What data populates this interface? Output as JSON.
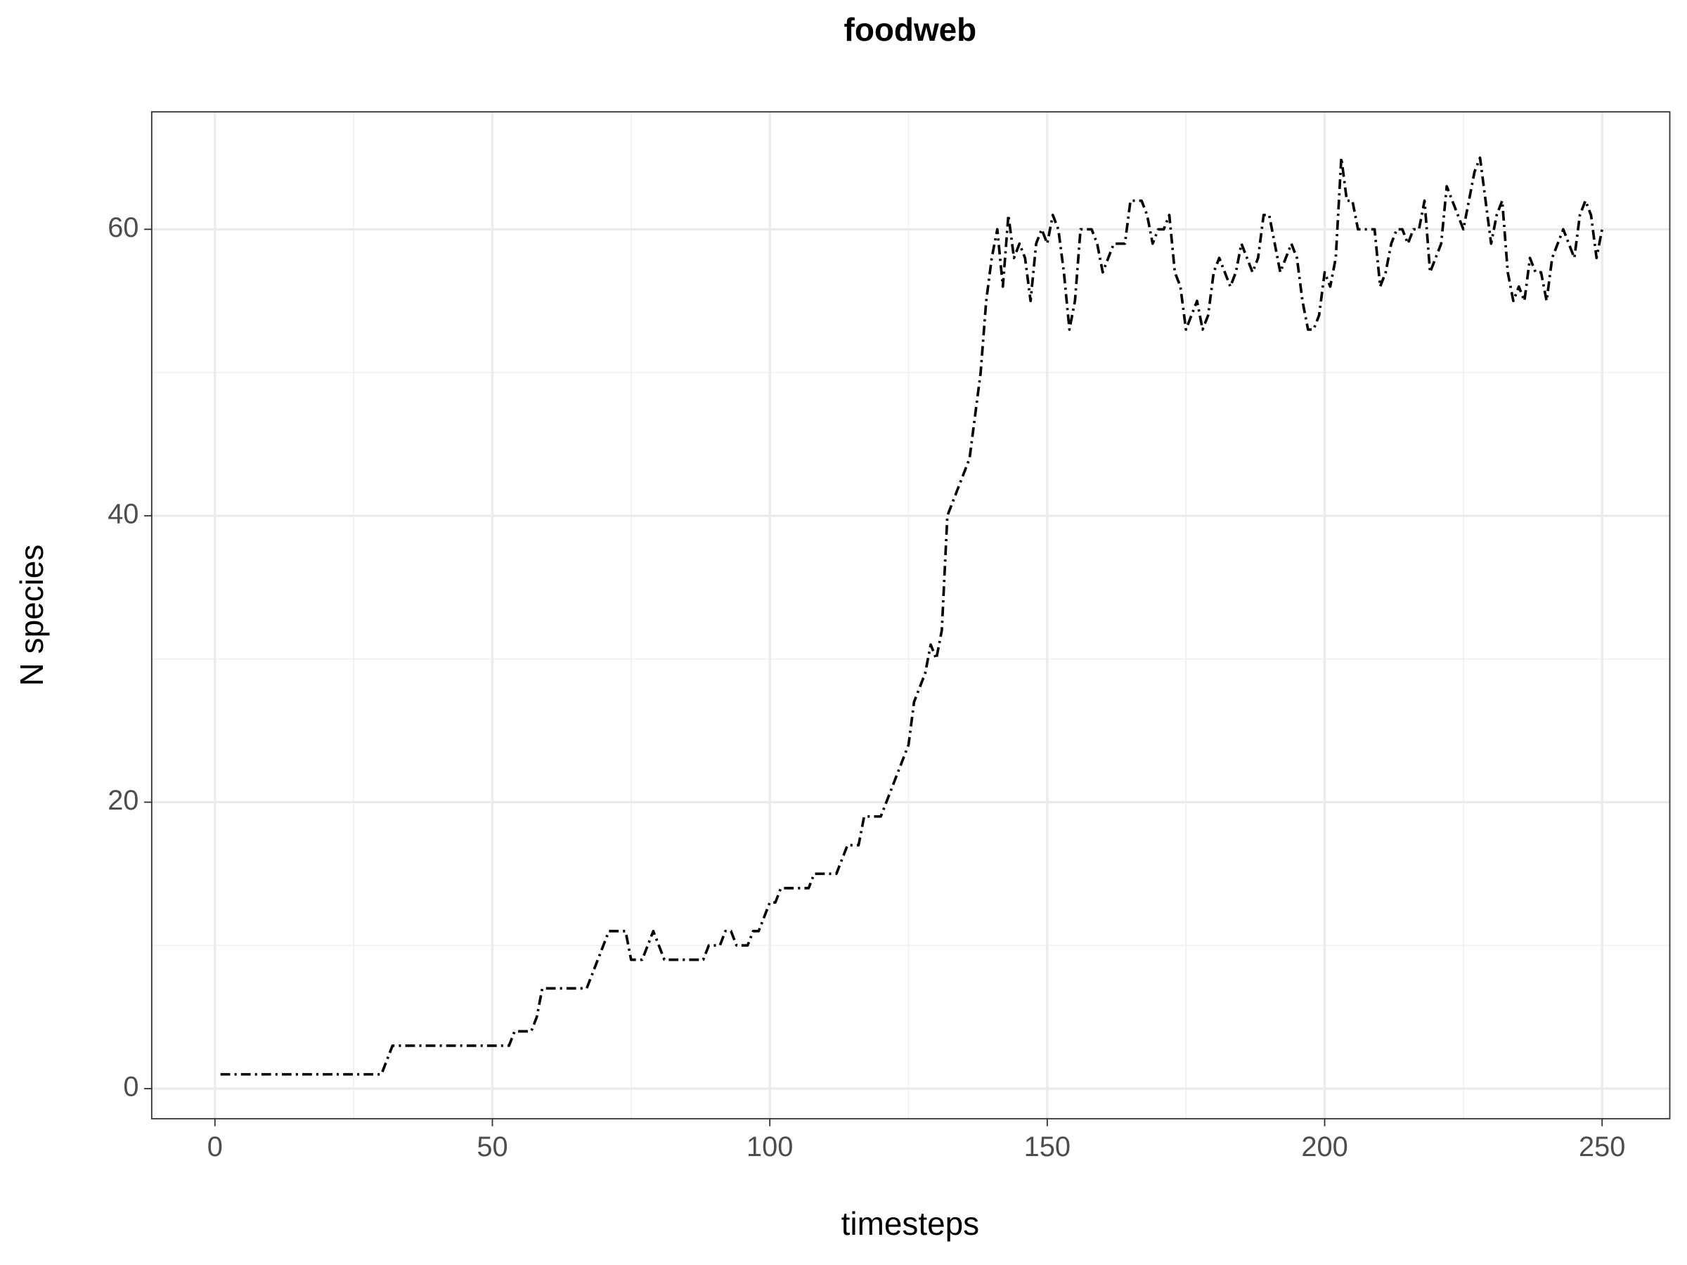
{
  "chart_data": {
    "type": "line",
    "title": "foodweb",
    "x_label": "timesteps",
    "y_label": "N species",
    "x": [
      1,
      2,
      3,
      4,
      5,
      6,
      7,
      8,
      9,
      10,
      11,
      12,
      13,
      14,
      15,
      16,
      17,
      18,
      19,
      20,
      21,
      22,
      23,
      24,
      25,
      26,
      27,
      28,
      29,
      30,
      31,
      32,
      33,
      34,
      35,
      36,
      37,
      38,
      39,
      40,
      41,
      42,
      43,
      44,
      45,
      46,
      47,
      48,
      49,
      50,
      51,
      52,
      53,
      54,
      55,
      56,
      57,
      58,
      59,
      60,
      61,
      62,
      63,
      64,
      65,
      66,
      67,
      68,
      69,
      70,
      71,
      72,
      73,
      74,
      75,
      76,
      77,
      78,
      79,
      80,
      81,
      82,
      83,
      84,
      85,
      86,
      87,
      88,
      89,
      90,
      91,
      92,
      93,
      94,
      95,
      96,
      97,
      98,
      99,
      100,
      101,
      102,
      103,
      104,
      105,
      106,
      107,
      108,
      109,
      110,
      111,
      112,
      113,
      114,
      115,
      116,
      117,
      118,
      119,
      120,
      121,
      122,
      123,
      124,
      125,
      126,
      127,
      128,
      129,
      130,
      131,
      132,
      133,
      134,
      135,
      136,
      137,
      138,
      139,
      140,
      141,
      142,
      143,
      144,
      145,
      146,
      147,
      148,
      149,
      150,
      151,
      152,
      153,
      154,
      155,
      156,
      157,
      158,
      159,
      160,
      161,
      162,
      163,
      164,
      165,
      166,
      167,
      168,
      169,
      170,
      171,
      172,
      173,
      174,
      175,
      176,
      177,
      178,
      179,
      180,
      181,
      182,
      183,
      184,
      185,
      186,
      187,
      188,
      189,
      190,
      191,
      192,
      193,
      194,
      195,
      196,
      197,
      198,
      199,
      200,
      201,
      202,
      203,
      204,
      205,
      206,
      207,
      208,
      209,
      210,
      211,
      212,
      213,
      214,
      215,
      216,
      217,
      218,
      219,
      220,
      221,
      222,
      223,
      224,
      225,
      226,
      227,
      228,
      229,
      230,
      231,
      232,
      233,
      234,
      235,
      236,
      237,
      238,
      239,
      240,
      241,
      242,
      243,
      244,
      245,
      246,
      247,
      248,
      249,
      250
    ],
    "values": [
      1,
      1,
      1,
      1,
      1,
      1,
      1,
      1,
      1,
      1,
      1,
      1,
      1,
      1,
      1,
      1,
      1,
      1,
      1,
      1,
      1,
      1,
      1,
      1,
      1,
      1,
      1,
      1,
      1,
      1,
      2,
      3,
      3,
      3,
      3,
      3,
      3,
      3,
      3,
      3,
      3,
      3,
      3,
      3,
      3,
      3,
      3,
      3,
      3,
      3,
      3,
      3,
      3,
      4,
      4,
      4,
      4,
      5,
      7,
      7,
      7,
      7,
      7,
      7,
      7,
      7,
      7,
      8,
      9,
      10,
      11,
      11,
      11,
      11,
      9,
      9,
      9,
      10,
      11,
      10,
      9,
      9,
      9,
      9,
      9,
      9,
      9,
      9,
      10,
      10,
      10,
      11,
      11,
      10,
      10,
      10,
      11,
      11,
      12,
      13,
      13,
      14,
      14,
      14,
      14,
      14,
      14,
      15,
      15,
      15,
      15,
      15,
      16,
      17,
      17,
      17,
      19,
      19,
      19,
      19,
      20,
      21,
      22,
      23,
      24,
      27,
      28,
      29,
      31,
      30,
      32,
      40,
      41,
      42,
      43,
      44,
      47,
      50,
      55,
      58,
      60,
      56,
      61,
      58,
      59,
      58,
      55,
      59,
      60,
      59,
      61,
      60,
      57,
      53,
      55,
      60,
      60,
      60,
      59,
      57,
      58,
      59,
      59,
      59,
      62,
      62,
      62,
      61,
      59,
      60,
      60,
      61,
      57,
      56,
      53,
      54,
      55,
      53,
      54,
      57,
      58,
      57,
      56,
      57,
      59,
      58,
      57,
      58,
      61,
      61,
      59,
      57,
      58,
      59,
      58,
      55,
      53,
      53,
      54,
      57,
      56,
      58,
      65,
      62,
      62,
      60,
      60,
      60,
      60,
      56,
      57,
      59,
      60,
      60,
      59,
      60,
      60,
      62,
      57,
      58,
      59,
      63,
      62,
      61,
      60,
      62,
      64,
      65,
      62,
      59,
      61,
      62,
      57,
      55,
      56,
      55,
      58,
      57,
      57,
      55,
      58,
      59,
      60,
      59,
      58,
      61,
      62,
      61,
      58,
      60
    ],
    "color": "#000000",
    "xlim": [
      -11.4,
      262.2
    ],
    "ylim": [
      -2.1,
      68.2
    ],
    "xticks": [
      0,
      50,
      100,
      150,
      200,
      250
    ],
    "yticks": [
      0,
      20,
      40,
      60
    ],
    "xminor": [
      25,
      75,
      125,
      175,
      225
    ],
    "yminor": [
      10,
      30,
      50
    ],
    "grid": true
  }
}
